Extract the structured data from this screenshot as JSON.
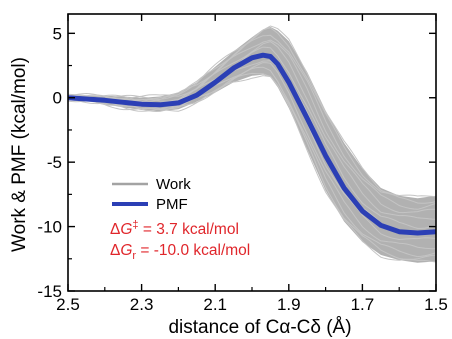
{
  "chart_data": {
    "type": "line",
    "xlabel": "distance of Cα-Cδ (Å)",
    "ylabel": "Work & PMF (kcal/mol)",
    "xlim": [
      2.5,
      1.5
    ],
    "ylim": [
      -15,
      6.5
    ],
    "x_reversed": true,
    "grid": false,
    "x_ticks": [
      2.5,
      2.3,
      2.1,
      1.9,
      1.7,
      1.5
    ],
    "y_ticks": [
      5,
      0,
      -5,
      -10,
      -15
    ],
    "legend_position": "center-left",
    "legend": [
      {
        "label": "Work",
        "color": "#a3a3a3"
      },
      {
        "label": "PMF",
        "color": "#2b3fb5"
      }
    ],
    "annotations": [
      {
        "prefix": "ΔG",
        "sup": "‡",
        "suffix": " = 3.7 kcal/mol"
      },
      {
        "prefix": "ΔG",
        "sub": "r",
        "suffix": " = -10.0 kcal/mol"
      }
    ],
    "annotation_color": "#e0262b",
    "series": [
      {
        "name": "PMF",
        "color": "#2b3fb5",
        "x": [
          2.5,
          2.45,
          2.4,
          2.35,
          2.3,
          2.25,
          2.2,
          2.15,
          2.1,
          2.05,
          2.0,
          1.97,
          1.95,
          1.93,
          1.9,
          1.85,
          1.8,
          1.75,
          1.7,
          1.65,
          1.6,
          1.55,
          1.5
        ],
        "y": [
          0.0,
          -0.1,
          -0.2,
          -0.35,
          -0.5,
          -0.55,
          -0.4,
          0.2,
          1.2,
          2.3,
          3.1,
          3.3,
          3.2,
          2.6,
          1.2,
          -1.6,
          -4.5,
          -7.0,
          -8.8,
          -9.9,
          -10.4,
          -10.5,
          -10.4
        ]
      },
      {
        "name": "Work (upper envelope)",
        "color": "#a3a3a3",
        "x": [
          2.5,
          2.45,
          2.4,
          2.35,
          2.3,
          2.25,
          2.2,
          2.15,
          2.1,
          2.05,
          2.0,
          1.97,
          1.95,
          1.93,
          1.9,
          1.85,
          1.8,
          1.75,
          1.7,
          1.65,
          1.6,
          1.55,
          1.5
        ],
        "y": [
          0.1,
          0.15,
          0.15,
          0.1,
          0.0,
          0.1,
          0.4,
          1.2,
          2.4,
          3.6,
          4.7,
          5.3,
          5.5,
          5.2,
          4.4,
          2.0,
          -1.0,
          -3.5,
          -5.5,
          -7.0,
          -7.6,
          -7.8,
          -7.6
        ]
      },
      {
        "name": "Work (lower envelope)",
        "color": "#a3a3a3",
        "x": [
          2.5,
          2.45,
          2.4,
          2.35,
          2.3,
          2.25,
          2.2,
          2.15,
          2.1,
          2.05,
          2.0,
          1.97,
          1.95,
          1.93,
          1.9,
          1.85,
          1.8,
          1.75,
          1.7,
          1.65,
          1.6,
          1.55,
          1.5
        ],
        "y": [
          -0.1,
          -0.25,
          -0.5,
          -0.75,
          -0.95,
          -1.05,
          -0.9,
          -0.3,
          0.4,
          1.2,
          1.7,
          1.8,
          1.6,
          0.8,
          -0.8,
          -4.0,
          -7.2,
          -9.6,
          -11.2,
          -12.2,
          -12.6,
          -12.8,
          -12.7
        ]
      }
    ]
  }
}
